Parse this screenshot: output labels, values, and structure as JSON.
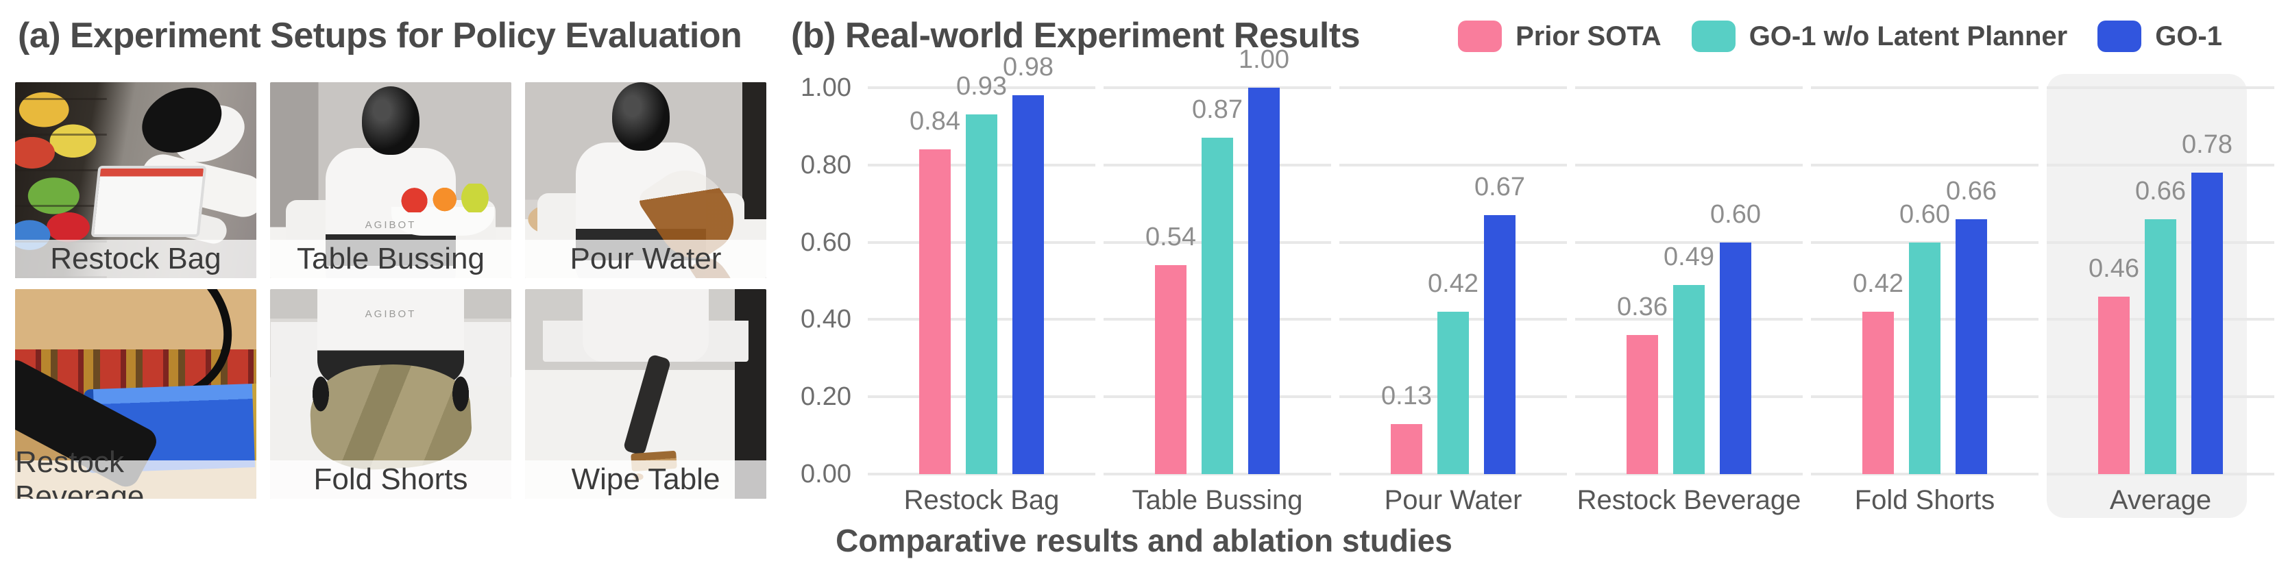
{
  "figure": {
    "panel_a": {
      "title": "(a) Experiment Setups for Policy Evaluation",
      "robot_chest_text": "AGIBOT",
      "photos": [
        {
          "label": "Restock Bag"
        },
        {
          "label": "Table Bussing"
        },
        {
          "label": "Pour Water"
        },
        {
          "label": "Restock Beverage"
        },
        {
          "label": "Fold Shorts"
        },
        {
          "label": "Wipe Table"
        }
      ]
    },
    "panel_b": {
      "title": "(b) Real-world Experiment Results",
      "caption": "Comparative results and ablation studies"
    }
  },
  "chart_data": {
    "type": "bar",
    "title": "(b) Real-world Experiment Results",
    "categories": [
      "Restock Bag",
      "Table Bussing",
      "Pour Water",
      "Restock Beverage",
      "Fold Shorts",
      "Average"
    ],
    "series": [
      {
        "name": "Prior SOTA",
        "color": "#F97D9C",
        "values": [
          0.84,
          0.54,
          0.13,
          0.36,
          0.42,
          0.46
        ]
      },
      {
        "name": "GO-1 w/o Latent Planner",
        "color": "#58CFC5",
        "values": [
          0.93,
          0.87,
          0.42,
          0.49,
          0.6,
          0.66
        ]
      },
      {
        "name": "GO-1",
        "color": "#3155DE",
        "values": [
          0.98,
          1.0,
          0.67,
          0.6,
          0.66,
          0.78
        ]
      }
    ],
    "ylim": [
      0.0,
      1.0
    ],
    "yticks": [
      0.0,
      0.2,
      0.4,
      0.6,
      0.8,
      1.0
    ],
    "ytick_labels": [
      "0.00",
      "0.20",
      "0.40",
      "0.60",
      "0.80",
      "1.00"
    ],
    "grid": "horizontal",
    "legend_position": "top-right",
    "highlight_category": "Average",
    "value_label_format": "0.00",
    "bar_value_label_color": "#8e8e8e",
    "gridline_color": "#e8e8e8",
    "highlight_color": "#f2f2f2"
  }
}
